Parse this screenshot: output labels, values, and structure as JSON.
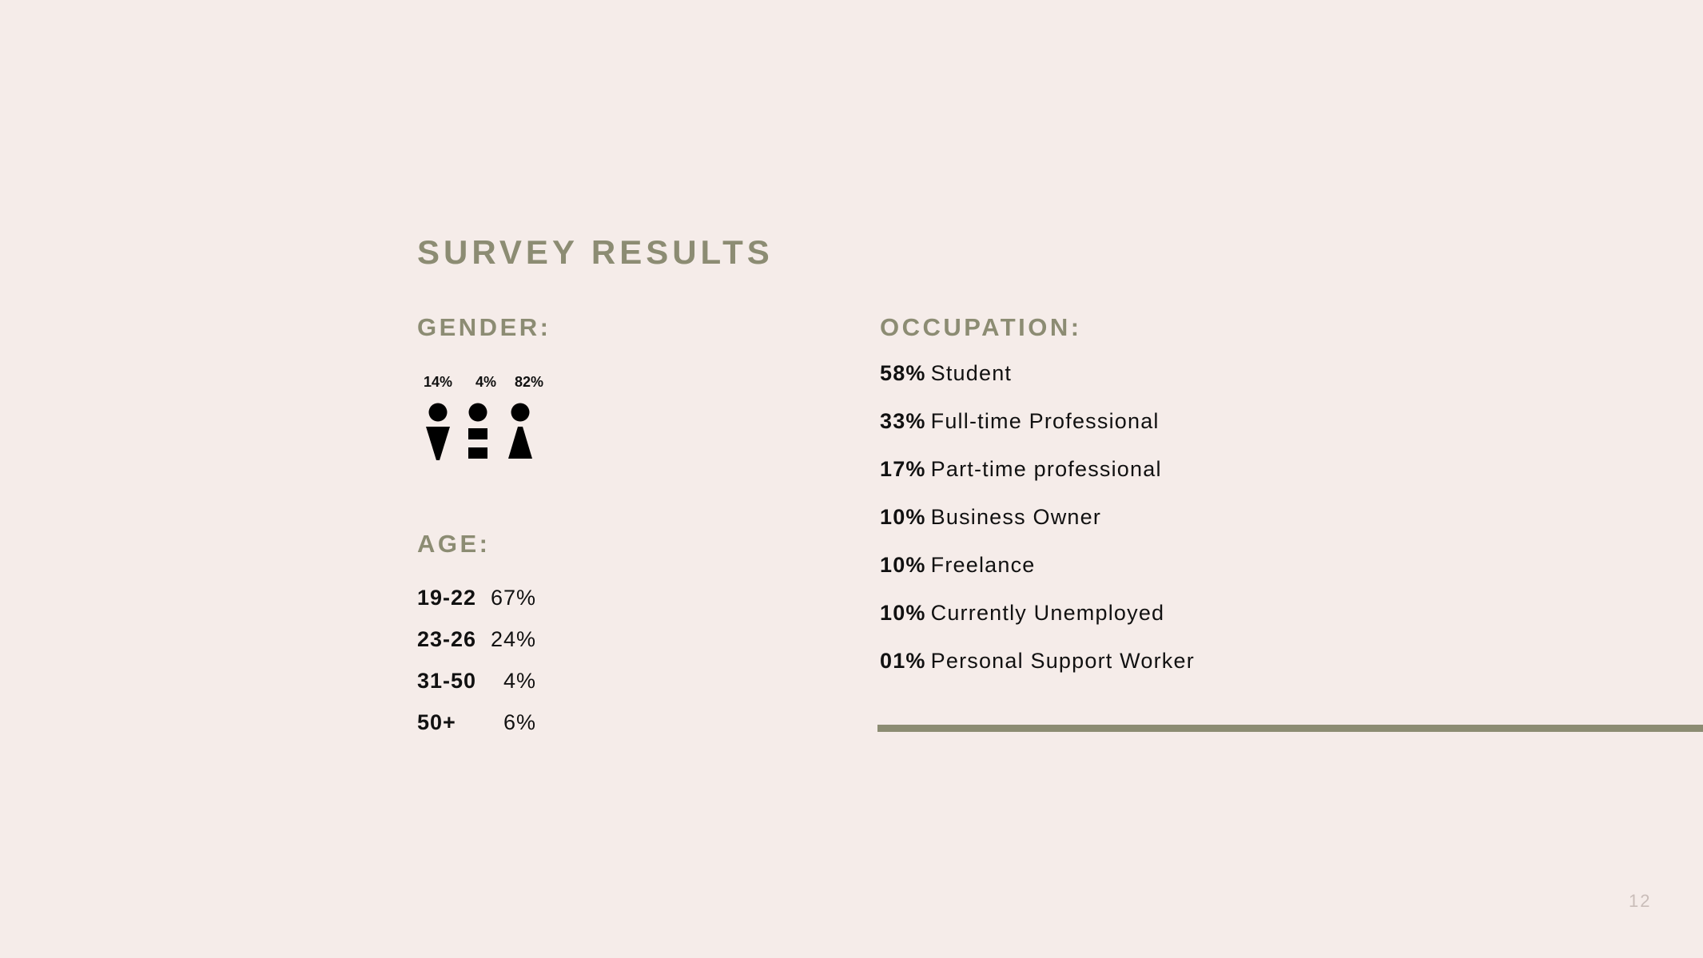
{
  "title": "SURVEY RESULTS",
  "gender": {
    "heading": "GENDER:",
    "groups": [
      {
        "percent": "14%",
        "icon": "male-figure-icon"
      },
      {
        "percent": "4%",
        "icon": "non-binary-figure-icon"
      },
      {
        "percent": "82%",
        "icon": "female-figure-icon"
      }
    ]
  },
  "age": {
    "heading": "AGE:",
    "rows": [
      {
        "range": "19-22",
        "percent": "67%"
      },
      {
        "range": "23-26",
        "percent": "24%"
      },
      {
        "range": "31-50",
        "percent": "4%"
      },
      {
        "range": "50+",
        "percent": "6%"
      }
    ]
  },
  "occupation": {
    "heading": "OCCUPATION:",
    "items": [
      {
        "percent": "58%",
        "label": "Student"
      },
      {
        "percent": "33%",
        "label": "Full-time Professional"
      },
      {
        "percent": "17%",
        "label": "Part-time professional"
      },
      {
        "percent": "10%",
        "label": "Business Owner"
      },
      {
        "percent": "10%",
        "label": "Freelance"
      },
      {
        "percent": "10%",
        "label": "Currently Unemployed"
      },
      {
        "percent": "01%",
        "label": "Personal Support Worker"
      }
    ]
  },
  "page_number": "12",
  "colors": {
    "background": "#f5ece9",
    "accent": "#8c8c73",
    "text": "#111111",
    "page_number": "#c9bdb9"
  }
}
